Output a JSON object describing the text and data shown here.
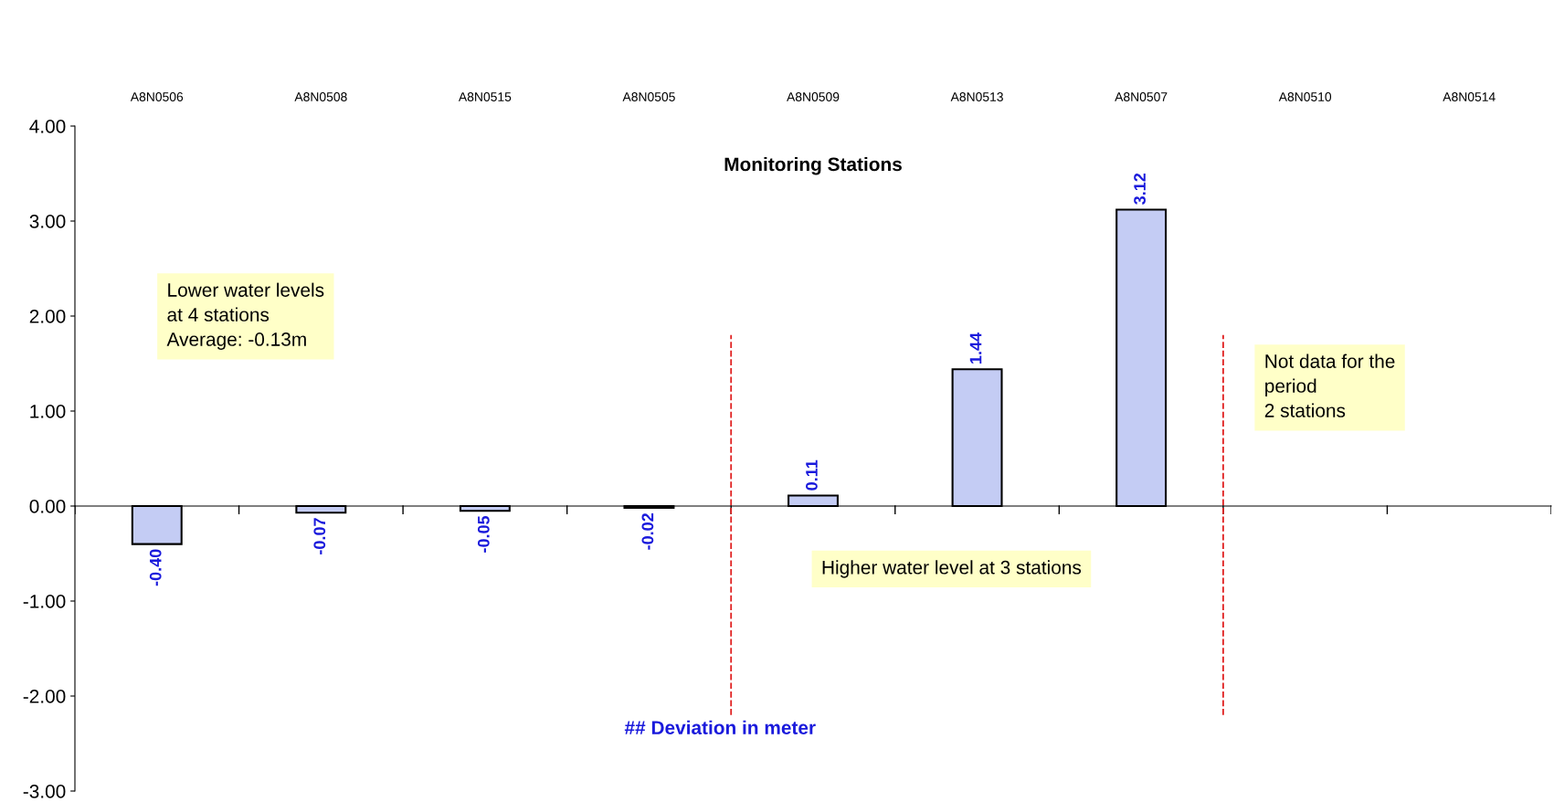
{
  "chart_data": {
    "type": "bar",
    "title": "Monitoring Stations",
    "categories": [
      "A8N0506",
      "A8N0508",
      "A8N0515",
      "A8N0505",
      "A8N0509",
      "A8N0513",
      "A8N0507",
      "A8N0510",
      "A8N0514"
    ],
    "series": [
      {
        "color": "#c4ccf4",
        "values": [
          -0.4,
          -0.07,
          -0.05,
          -0.02,
          0.11,
          1.44,
          3.12,
          null,
          null
        ],
        "value_labels": [
          "-0.40",
          "-0.07",
          "-0.05",
          "-0.02",
          "0.11",
          "1.44",
          "3.12",
          null,
          null
        ]
      }
    ],
    "ylim": [
      -3,
      4
    ],
    "yticks": [
      {
        "value": -3,
        "label": "-3.00"
      },
      {
        "value": -2,
        "label": "-2.00"
      },
      {
        "value": -1,
        "label": "-1.00"
      },
      {
        "value": 0,
        "label": "0.00"
      },
      {
        "value": 1,
        "label": "1.00"
      },
      {
        "value": 2,
        "label": "2.00"
      },
      {
        "value": 3,
        "label": "3.00"
      },
      {
        "value": 4,
        "label": "4.00"
      }
    ],
    "annotations": [
      "Lower water levels\nat 4 stations\nAverage: -0.13m",
      "Higher water level at 3 stations",
      "Not data for the\nperiod\n2 stations",
      "## Deviation in meter"
    ],
    "legend": false
  }
}
